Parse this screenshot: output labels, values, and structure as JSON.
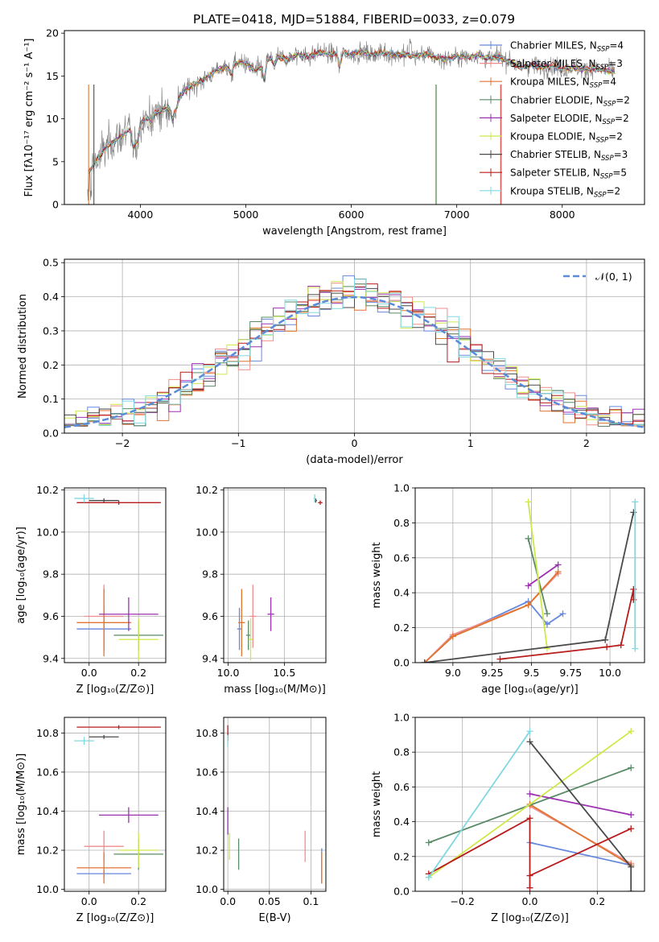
{
  "title": "PLATE=0418, MJD=51884, FIBERID=0033, z=0.079",
  "colors": {
    "Chabrier MILES": "#6688dd",
    "Salpeter MILES": "#f08c8c",
    "Kroupa MILES": "#e07530",
    "Chabrier ELODIE": "#5a8a66",
    "Salpeter ELODIE": "#9b30b0",
    "Kroupa ELODIE": "#cfe84a",
    "Chabrier STELIB": "#4a4a4a",
    "Salpeter STELIB": "#b81c1c",
    "Kroupa STELIB": "#80d8e0",
    "normal_curve": "#5b8bd8"
  },
  "chart_data": [
    {
      "id": "spectrum",
      "type": "line",
      "xlabel": "wavelength [Angstrom, rest frame]",
      "ylabel": "Flux [fλ10⁻¹⁷ erg cm⁻² s⁻¹ A⁻¹]",
      "xlim": [
        3280,
        8780
      ],
      "ylim": [
        0,
        20.3
      ],
      "xticks": [
        4000,
        5000,
        6000,
        7000,
        8000
      ],
      "yticks": [
        0,
        5,
        10,
        15,
        20
      ],
      "grid": false,
      "legend": "right",
      "continuum": {
        "x": [
          3500,
          3600,
          3700,
          3800,
          3900,
          4000,
          4100,
          4200,
          4300,
          4400,
          4500,
          4600,
          4700,
          4800,
          4900,
          5000,
          5100,
          5200,
          5300,
          5400,
          5500,
          5600,
          5700,
          5800,
          5900,
          6000,
          6100,
          6200,
          6300,
          6400,
          6500,
          6600,
          6700,
          6800,
          6900,
          7000,
          7100,
          7200,
          7300,
          7400,
          7500,
          7600,
          7700,
          7800,
          7900,
          8000,
          8100,
          8200,
          8300,
          8400,
          8500
        ],
        "y": [
          3.5,
          5.5,
          7.0,
          7.8,
          8.8,
          9.5,
          10.5,
          11.0,
          11.5,
          13.0,
          14.0,
          14.5,
          15.5,
          16.0,
          16.5,
          16.5,
          15.5,
          17.0,
          17.2,
          17.0,
          17.5,
          17.3,
          17.8,
          17.5,
          17.9,
          17.5,
          17.8,
          17.5,
          17.8,
          17.5,
          17.5,
          17.3,
          17.6,
          17.2,
          17.0,
          17.3,
          17.2,
          17.5,
          17.0,
          17.2,
          16.8,
          16.0,
          16.3,
          16.0,
          16.2,
          15.8,
          16.0,
          15.7,
          15.9,
          15.6,
          15.5
        ]
      },
      "series": [
        {
          "name": "Chabrier MILES, N",
          "ssp": "=4"
        },
        {
          "name": "Salpeter MILES, N",
          "ssp": "=3"
        },
        {
          "name": "Kroupa MILES, N",
          "ssp": "=4"
        },
        {
          "name": "Chabrier ELODIE, N",
          "ssp": "=2"
        },
        {
          "name": "Salpeter ELODIE, N",
          "ssp": "=2"
        },
        {
          "name": "Kroupa ELODIE, N",
          "ssp": "=2"
        },
        {
          "name": "Chabrier STELIB, N",
          "ssp": "=3"
        },
        {
          "name": "Salpeter STELIB, N",
          "ssp": "=5"
        },
        {
          "name": "Kroupa STELIB, N",
          "ssp": "=2"
        }
      ]
    },
    {
      "id": "residuals",
      "type": "area",
      "xlabel": "(data-model)/error",
      "ylabel": "Normed distribution",
      "xlim": [
        -2.5,
        2.5
      ],
      "ylim": [
        0,
        0.51
      ],
      "xticks": [
        -2,
        -1,
        0,
        1,
        2
      ],
      "yticks": [
        0.0,
        0.1,
        0.2,
        0.3,
        0.4,
        0.5
      ],
      "grid": true,
      "legend": "top-right",
      "legend_label": "𝒩(0, 1)",
      "bin_width": 0.1
    },
    {
      "id": "age_vs_Z",
      "type": "scatter",
      "xlabel": "Z [log₁₀(Z/Z⊙)]",
      "ylabel": "age  [log₁₀(age/yr)]",
      "xlim": [
        -0.1,
        0.31
      ],
      "ylim": [
        9.38,
        10.21
      ],
      "xticks": [
        0.0,
        0.2
      ],
      "yticks": [
        9.4,
        9.6,
        9.8,
        10.0,
        10.2
      ],
      "grid": true,
      "points": [
        {
          "series": "Chabrier MILES",
          "x": 0.06,
          "y": 9.54,
          "xerr": 0.11,
          "yerr": 0.1
        },
        {
          "series": "Salpeter MILES",
          "x": 0.06,
          "y": 9.6,
          "xerr": 0.08,
          "yerr": 0.15
        },
        {
          "series": "Kroupa MILES",
          "x": 0.06,
          "y": 9.57,
          "xerr": 0.11,
          "yerr": 0.16
        },
        {
          "series": "Chabrier ELODIE",
          "x": 0.2,
          "y": 9.51,
          "xerr": 0.1,
          "yerr": 0.07
        },
        {
          "series": "Salpeter ELODIE",
          "x": 0.16,
          "y": 9.61,
          "xerr": 0.12,
          "yerr": 0.08
        },
        {
          "series": "Kroupa ELODIE",
          "x": 0.2,
          "y": 9.49,
          "xerr": 0.08,
          "yerr": 0.1
        },
        {
          "series": "Chabrier STELIB",
          "x": 0.06,
          "y": 10.15,
          "xerr": 0.06,
          "yerr": 0.01
        },
        {
          "series": "Salpeter STELIB",
          "x": 0.12,
          "y": 10.14,
          "xerr": 0.17,
          "yerr": 0.01
        },
        {
          "series": "Kroupa STELIB",
          "x": -0.02,
          "y": 10.16,
          "xerr": 0.04,
          "yerr": 0.02
        }
      ]
    },
    {
      "id": "age_vs_mass",
      "type": "scatter",
      "xlabel": "mass [log₁₀(M/M⊙)]",
      "ylabel": "",
      "xlim": [
        9.96,
        10.87
      ],
      "ylim": [
        9.38,
        10.21
      ],
      "xticks": [
        10.0,
        10.5
      ],
      "yticks": [
        9.4,
        9.6,
        9.8,
        10.0,
        10.2
      ],
      "grid": true,
      "points": [
        {
          "series": "Chabrier MILES",
          "x": 10.1,
          "y": 9.54,
          "xerr": 0.02,
          "yerr": 0.1
        },
        {
          "series": "Salpeter MILES",
          "x": 10.22,
          "y": 9.6,
          "xerr": 0.03,
          "yerr": 0.15
        },
        {
          "series": "Kroupa MILES",
          "x": 10.12,
          "y": 9.57,
          "xerr": 0.03,
          "yerr": 0.16
        },
        {
          "series": "Chabrier ELODIE",
          "x": 10.18,
          "y": 9.51,
          "xerr": 0.02,
          "yerr": 0.07
        },
        {
          "series": "Salpeter ELODIE",
          "x": 10.38,
          "y": 9.61,
          "xerr": 0.03,
          "yerr": 0.08
        },
        {
          "series": "Kroupa ELODIE",
          "x": 10.2,
          "y": 9.49,
          "xerr": 0.02,
          "yerr": 0.1
        },
        {
          "series": "Chabrier STELIB",
          "x": 10.78,
          "y": 10.15,
          "xerr": 0.01,
          "yerr": 0.01
        },
        {
          "series": "Salpeter STELIB",
          "x": 10.82,
          "y": 10.14,
          "xerr": 0.02,
          "yerr": 0.01
        },
        {
          "series": "Kroupa STELIB",
          "x": 10.77,
          "y": 10.16,
          "xerr": 0.01,
          "yerr": 0.02
        }
      ]
    },
    {
      "id": "weight_vs_age",
      "type": "line",
      "xlabel": "age  [log₁₀(age/yr)]",
      "ylabel": "mass weight",
      "xlim": [
        8.76,
        10.22
      ],
      "ylim": [
        0,
        1.0
      ],
      "xticks": [
        9.0,
        9.25,
        9.5,
        9.75,
        10.0
      ],
      "yticks": [
        0.0,
        0.2,
        0.4,
        0.6,
        0.8,
        1.0
      ],
      "grid": true,
      "series": [
        {
          "name": "Chabrier MILES",
          "x": [
            8.82,
            9.0,
            9.48,
            9.6,
            9.7
          ],
          "y": [
            0.0,
            0.15,
            0.35,
            0.22,
            0.28
          ]
        },
        {
          "name": "Salpeter MILES",
          "x": [
            8.82,
            9.0,
            9.48,
            9.67
          ],
          "y": [
            0.0,
            0.16,
            0.33,
            0.51
          ]
        },
        {
          "name": "Kroupa MILES",
          "x": [
            8.82,
            9.0,
            9.48,
            9.67
          ],
          "y": [
            0.0,
            0.15,
            0.33,
            0.52
          ]
        },
        {
          "name": "Chabrier ELODIE",
          "x": [
            9.48,
            9.6
          ],
          "y": [
            0.71,
            0.28
          ]
        },
        {
          "name": "Salpeter ELODIE",
          "x": [
            9.48,
            9.67
          ],
          "y": [
            0.44,
            0.56
          ]
        },
        {
          "name": "Kroupa ELODIE",
          "x": [
            9.48,
            9.6
          ],
          "y": [
            0.92,
            0.08
          ]
        },
        {
          "name": "Chabrier STELIB",
          "x": [
            8.82,
            9.97,
            10.15
          ],
          "y": [
            0.0,
            0.13,
            0.86
          ]
        },
        {
          "name": "Salpeter STELIB",
          "x": [
            9.3,
            9.98,
            10.07,
            10.15,
            10.15
          ],
          "y": [
            0.02,
            0.09,
            0.1,
            0.42,
            0.36
          ]
        },
        {
          "name": "Kroupa STELIB",
          "x": [
            10.16,
            10.16
          ],
          "y": [
            0.92,
            0.08
          ]
        }
      ]
    },
    {
      "id": "mass_vs_Z",
      "type": "scatter",
      "xlabel": "Z [log₁₀(Z/Z⊙)]",
      "ylabel": "mass [log₁₀(M/M⊙)]",
      "xlim": [
        -0.1,
        0.31
      ],
      "ylim": [
        9.99,
        10.88
      ],
      "xticks": [
        0.0,
        0.2
      ],
      "yticks": [
        10.0,
        10.2,
        10.4,
        10.6,
        10.8
      ],
      "grid": true,
      "points": [
        {
          "series": "Chabrier MILES",
          "x": 0.06,
          "y": 10.08,
          "xerr": 0.11,
          "yerr": 0.02
        },
        {
          "series": "Salpeter MILES",
          "x": 0.06,
          "y": 10.22,
          "xerr": 0.08,
          "yerr": 0.08
        },
        {
          "series": "Kroupa MILES",
          "x": 0.06,
          "y": 10.11,
          "xerr": 0.11,
          "yerr": 0.08
        },
        {
          "series": "Chabrier ELODIE",
          "x": 0.2,
          "y": 10.18,
          "xerr": 0.1,
          "yerr": 0.08
        },
        {
          "series": "Salpeter ELODIE",
          "x": 0.16,
          "y": 10.38,
          "xerr": 0.12,
          "yerr": 0.04
        },
        {
          "series": "Kroupa ELODIE",
          "x": 0.2,
          "y": 10.2,
          "xerr": 0.08,
          "yerr": 0.09
        },
        {
          "series": "Chabrier STELIB",
          "x": 0.06,
          "y": 10.78,
          "xerr": 0.06,
          "yerr": 0.01
        },
        {
          "series": "Salpeter STELIB",
          "x": 0.12,
          "y": 10.83,
          "xerr": 0.17,
          "yerr": 0.01
        },
        {
          "series": "Kroupa STELIB",
          "x": -0.02,
          "y": 10.76,
          "xerr": 0.04,
          "yerr": 0.02
        }
      ]
    },
    {
      "id": "mass_vs_ebv",
      "type": "scatter",
      "xlabel": "E(B-V)",
      "ylabel": "",
      "xlim": [
        -0.005,
        0.118
      ],
      "ylim": [
        9.99,
        10.88
      ],
      "xticks": [
        0.0,
        0.05,
        0.1
      ],
      "yticks": [
        10.0,
        10.2,
        10.4,
        10.6,
        10.8
      ],
      "grid": true,
      "points": [
        {
          "series": "Chabrier MILES",
          "x": 0.113,
          "y": 10.12,
          "xerr": 0.0,
          "yerr": 0.09
        },
        {
          "series": "Salpeter MILES",
          "x": 0.093,
          "y": 10.22,
          "xerr": 0.0,
          "yerr": 0.08
        },
        {
          "series": "Kroupa MILES",
          "x": 0.113,
          "y": 10.11,
          "xerr": 0.0,
          "yerr": 0.08
        },
        {
          "series": "Chabrier ELODIE",
          "x": 0.013,
          "y": 10.18,
          "xerr": 0.0,
          "yerr": 0.08
        },
        {
          "series": "Salpeter ELODIE",
          "x": 0.0,
          "y": 10.35,
          "xerr": 0.0,
          "yerr": 0.07
        },
        {
          "series": "Kroupa ELODIE",
          "x": 0.002,
          "y": 10.22,
          "xerr": 0.0,
          "yerr": 0.07
        },
        {
          "series": "Chabrier STELIB",
          "x": 0.0,
          "y": 10.78,
          "xerr": 0.0,
          "yerr": 0.02
        },
        {
          "series": "Salpeter STELIB",
          "x": 0.0,
          "y": 10.8,
          "xerr": 0.0,
          "yerr": 0.04
        },
        {
          "series": "Kroupa STELIB",
          "x": 0.0,
          "y": 10.76,
          "xerr": 0.0,
          "yerr": 0.03
        }
      ]
    },
    {
      "id": "weight_vs_Z",
      "type": "line",
      "xlabel": "Z [log₁₀(Z/Z⊙)]",
      "ylabel": "mass weight",
      "xlim": [
        -0.34,
        0.34
      ],
      "ylim": [
        0,
        1.0
      ],
      "xticks": [
        -0.2,
        0.0,
        0.2
      ],
      "yticks": [
        0.0,
        0.2,
        0.4,
        0.6,
        0.8,
        1.0
      ],
      "grid": true,
      "series": [
        {
          "name": "Chabrier MILES",
          "x": [
            0.0,
            0.3
          ],
          "y": [
            0.28,
            0.15
          ]
        },
        {
          "name": "Salpeter MILES",
          "x": [
            0.0,
            0.3
          ],
          "y": [
            0.49,
            0.16
          ]
        },
        {
          "name": "Kroupa MILES",
          "x": [
            0.0,
            0.3
          ],
          "y": [
            0.5,
            0.15
          ]
        },
        {
          "name": "Chabrier ELODIE",
          "x": [
            -0.3,
            0.3
          ],
          "y": [
            0.28,
            0.71
          ]
        },
        {
          "name": "Salpeter ELODIE",
          "x": [
            0.0,
            0.3
          ],
          "y": [
            0.56,
            0.44
          ]
        },
        {
          "name": "Kroupa ELODIE",
          "x": [
            -0.3,
            0.3
          ],
          "y": [
            0.08,
            0.92
          ]
        },
        {
          "name": "Chabrier STELIB",
          "x": [
            0.0,
            0.3,
            0.3
          ],
          "y": [
            0.86,
            0.14,
            0.0
          ]
        },
        {
          "name": "Salpeter STELIB",
          "x": [
            -0.3,
            0.0,
            0.0,
            0.0,
            0.3
          ],
          "y": [
            0.1,
            0.42,
            0.02,
            0.09,
            0.36
          ]
        },
        {
          "name": "Kroupa STELIB",
          "x": [
            -0.3,
            0.0
          ],
          "y": [
            0.08,
            0.92
          ]
        }
      ]
    }
  ]
}
